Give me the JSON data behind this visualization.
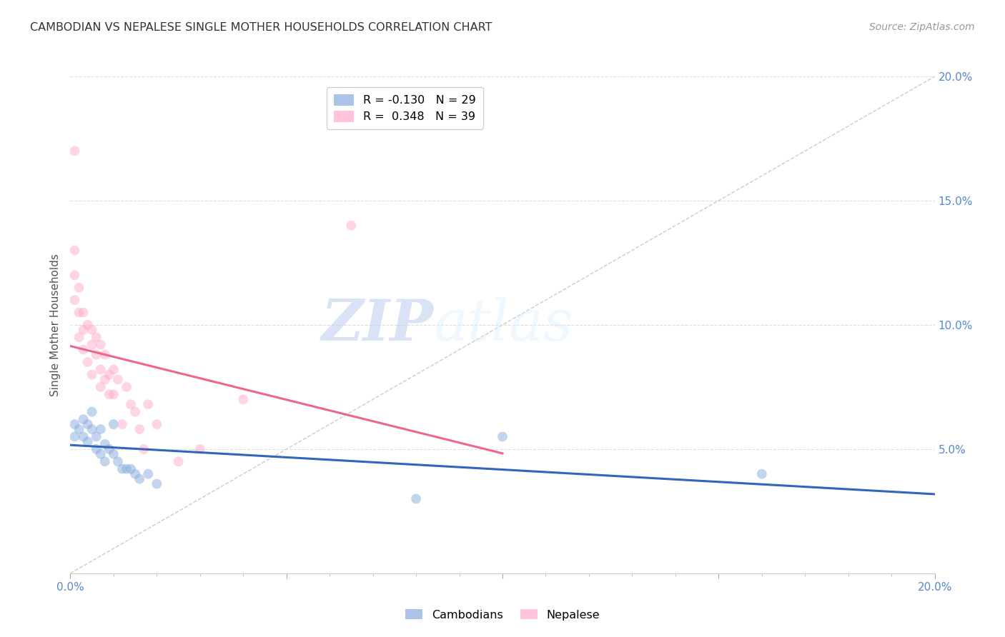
{
  "title": "CAMBODIAN VS NEPALESE SINGLE MOTHER HOUSEHOLDS CORRELATION CHART",
  "source": "Source: ZipAtlas.com",
  "ylabel": "Single Mother Households",
  "xlim": [
    0.0,
    0.2
  ],
  "ylim": [
    0.0,
    0.2
  ],
  "xticks": [
    0.0,
    0.05,
    0.1,
    0.15,
    0.2
  ],
  "xticklabels_ends": [
    "0.0%",
    "20.0%"
  ],
  "yticks_right": [
    0.05,
    0.1,
    0.15,
    0.2
  ],
  "yticklabels_right": [
    "5.0%",
    "10.0%",
    "15.0%",
    "20.0%"
  ],
  "watermark_zip": "ZIP",
  "watermark_atlas": "atlas",
  "cambodian_color": "#88AADD",
  "nepalese_color": "#FFAACC",
  "cambodian_R": -0.13,
  "cambodian_N": 29,
  "nepalese_R": 0.348,
  "nepalese_N": 39,
  "diagonal_line_color": "#CCCCCC",
  "cambodian_trend_color": "#3366BB",
  "nepalese_trend_color": "#EE6688",
  "tick_color": "#5588CC",
  "title_color": "#333333",
  "source_color": "#999999",
  "cambodian_x": [
    0.001,
    0.001,
    0.002,
    0.003,
    0.003,
    0.004,
    0.004,
    0.005,
    0.005,
    0.006,
    0.006,
    0.007,
    0.007,
    0.008,
    0.008,
    0.009,
    0.01,
    0.01,
    0.011,
    0.012,
    0.013,
    0.014,
    0.015,
    0.016,
    0.018,
    0.02,
    0.08,
    0.1,
    0.16
  ],
  "cambodian_y": [
    0.06,
    0.055,
    0.058,
    0.062,
    0.055,
    0.06,
    0.053,
    0.065,
    0.058,
    0.055,
    0.05,
    0.058,
    0.048,
    0.052,
    0.045,
    0.05,
    0.06,
    0.048,
    0.045,
    0.042,
    0.042,
    0.042,
    0.04,
    0.038,
    0.04,
    0.036,
    0.03,
    0.055,
    0.04
  ],
  "nepalese_x": [
    0.001,
    0.001,
    0.001,
    0.001,
    0.002,
    0.002,
    0.002,
    0.003,
    0.003,
    0.003,
    0.004,
    0.004,
    0.005,
    0.005,
    0.005,
    0.006,
    0.006,
    0.007,
    0.007,
    0.007,
    0.008,
    0.008,
    0.009,
    0.009,
    0.01,
    0.01,
    0.011,
    0.012,
    0.013,
    0.014,
    0.015,
    0.016,
    0.017,
    0.018,
    0.02,
    0.025,
    0.03,
    0.04,
    0.065
  ],
  "nepalese_y": [
    0.17,
    0.13,
    0.12,
    0.11,
    0.115,
    0.105,
    0.095,
    0.105,
    0.098,
    0.09,
    0.1,
    0.085,
    0.098,
    0.092,
    0.08,
    0.095,
    0.088,
    0.092,
    0.082,
    0.075,
    0.088,
    0.078,
    0.08,
    0.072,
    0.082,
    0.072,
    0.078,
    0.06,
    0.075,
    0.068,
    0.065,
    0.058,
    0.05,
    0.068,
    0.06,
    0.045,
    0.05,
    0.07,
    0.14
  ]
}
